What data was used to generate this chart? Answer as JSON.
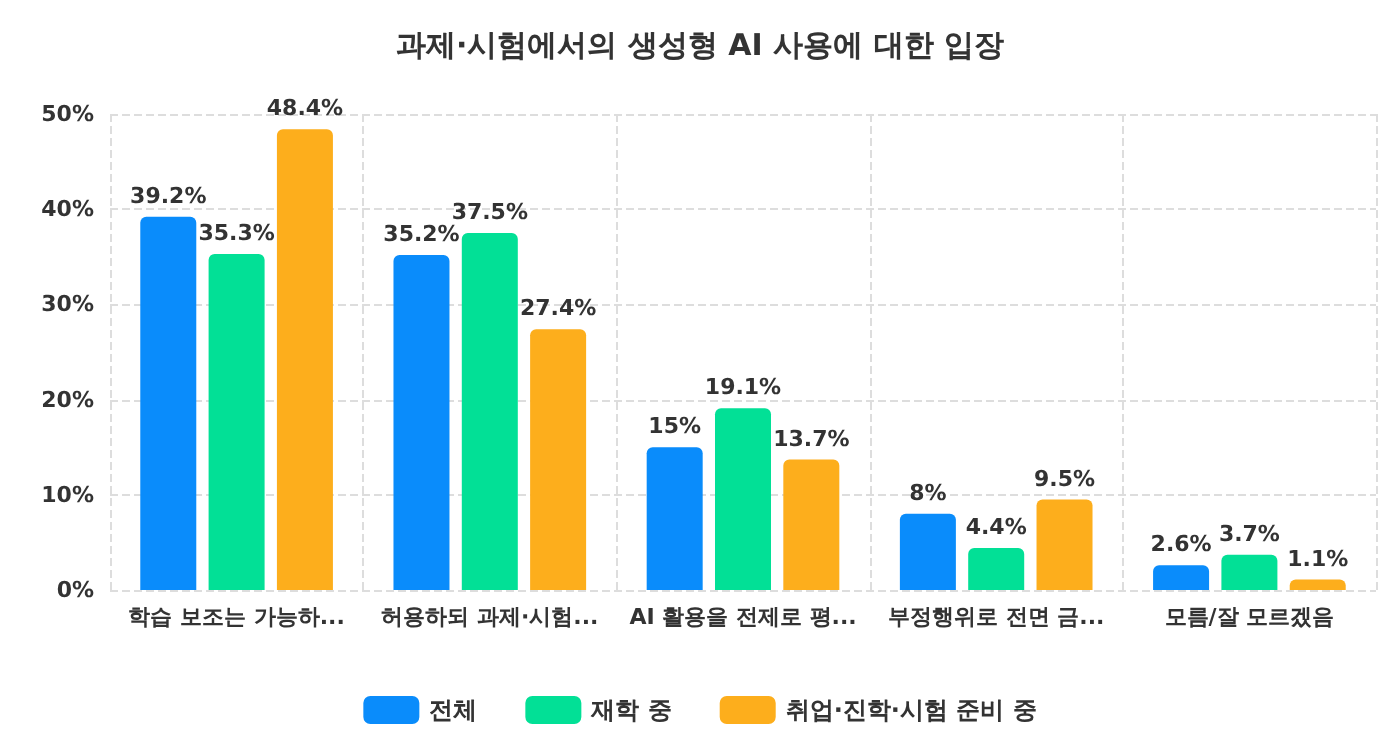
{
  "chart_data": {
    "type": "bar",
    "title": "과제·시험에서의 생성형 AI 사용에 대한 입장",
    "categories": [
      "학습 보조는 가능하...",
      "허용하되 과제·시험...",
      "AI 활용을 전제로 평...",
      "부정행위로 전면 금...",
      "모름/잘 모르겠음"
    ],
    "series": [
      {
        "name": "전체",
        "color": "#0a8cfb",
        "values": [
          39.2,
          35.2,
          15,
          8,
          2.6
        ],
        "value_labels": [
          "39.2%",
          "35.2%",
          "15%",
          "8%",
          "2.6%"
        ]
      },
      {
        "name": "재학 중",
        "color": "#02e096",
        "values": [
          35.3,
          37.5,
          19.1,
          4.4,
          3.7
        ],
        "value_labels": [
          "35.3%",
          "37.5%",
          "19.1%",
          "4.4%",
          "3.7%"
        ]
      },
      {
        "name": "취업·진학·시험 준비 중",
        "color": "#fdae1c",
        "values": [
          48.4,
          27.4,
          13.7,
          9.5,
          1.1
        ],
        "value_labels": [
          "48.4%",
          "27.4%",
          "13.7%",
          "9.5%",
          "1.1%"
        ]
      }
    ],
    "ylim": [
      0,
      50
    ],
    "yticks": [
      {
        "value": 0,
        "label": "0%"
      },
      {
        "value": 10,
        "label": "10%"
      },
      {
        "value": 20,
        "label": "20%"
      },
      {
        "value": 30,
        "label": "30%"
      },
      {
        "value": 40,
        "label": "40%"
      },
      {
        "value": 50,
        "label": "50%"
      }
    ],
    "grid": true,
    "legend": "bottom"
  }
}
